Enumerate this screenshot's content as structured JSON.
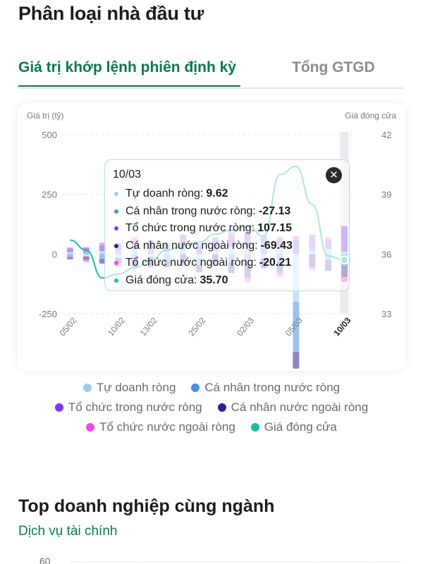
{
  "page": {
    "title": "Phân loại nhà đầu tư"
  },
  "tabs": [
    {
      "label": "Giá trị khớp lệnh phiên định kỳ",
      "active": true
    },
    {
      "label": "Tổng GTGD",
      "active": false
    }
  ],
  "colors": {
    "accent": "#0b7a4b",
    "tu_doanh": "#9ccbef",
    "ca_nhan_trong_nuoc": "#4a8fe0",
    "to_chuc_trong_nuoc": "#7c3aed",
    "ca_nhan_nuoc_ngoai": "#3b1c8c",
    "to_chuc_nuoc_ngoai": "#f14be1",
    "gia_dong_cua": "#1bbfa6"
  },
  "chart_data": {
    "type": "bar",
    "y_left_label": "Giá trị (tỷ)",
    "y_right_label": "Giá đóng cửa",
    "y_left_range": [
      -250,
      500
    ],
    "y_left_ticks": [
      "500",
      "250",
      "0",
      "-250"
    ],
    "y_right_range": [
      33,
      42
    ],
    "y_right_ticks": [
      "42",
      "39",
      "36",
      "33"
    ],
    "x_ticks": [
      "05/02",
      "10/02",
      "13/02",
      "25/02",
      "02/03",
      "05/03",
      "10/03"
    ],
    "series": [
      {
        "name": "Tự doanh ròng",
        "key": "tu_doanh",
        "values": [
          8,
          -10,
          12,
          -15,
          20,
          -12,
          10,
          15,
          -18,
          12,
          30,
          35,
          -20,
          25,
          -200,
          10,
          20,
          9.62
        ]
      },
      {
        "name": "Cá nhân trong nước ròng",
        "key": "ca_nhan_trong_nuoc",
        "values": [
          -12,
          8,
          -20,
          15,
          -25,
          18,
          -30,
          22,
          -28,
          18,
          -35,
          -40,
          30,
          -30,
          -210,
          15,
          -25,
          -27.13
        ]
      },
      {
        "name": "Tổ chức trong nước ròng",
        "key": "to_chuc_trong_nuoc",
        "values": [
          15,
          20,
          25,
          30,
          35,
          40,
          30,
          45,
          35,
          40,
          50,
          55,
          40,
          45,
          60,
          55,
          40,
          107.15
        ]
      },
      {
        "name": "Cá nhân nước ngoài ròng",
        "key": "ca_nhan_nuoc_ngoai",
        "values": [
          -10,
          -15,
          -20,
          -25,
          -30,
          -35,
          -25,
          -40,
          -30,
          -35,
          -45,
          -60,
          -40,
          -50,
          -70,
          -55,
          -45,
          -69.43
        ]
      },
      {
        "name": "Tổ chức nước ngoài ròng",
        "key": "to_chuc_nuoc_ngoai",
        "values": [
          5,
          -8,
          10,
          -12,
          15,
          -10,
          8,
          -12,
          10,
          -15,
          12,
          -18,
          10,
          -15,
          15,
          -12,
          10,
          -20.21
        ]
      },
      {
        "name": "Giá đóng cửa",
        "key": "gia_dong_cua",
        "type": "line",
        "values": [
          36.7,
          36.2,
          34.8,
          35.0,
          35.3,
          35.7,
          36.2,
          36.4,
          36.6,
          37.0,
          37.2,
          37.4,
          36.9,
          40.0,
          40.4,
          38.5,
          35.9,
          35.7
        ]
      }
    ],
    "highlight_index": 17
  },
  "tooltip": {
    "date": "10/03",
    "rows": [
      {
        "label": "Tự doanh ròng:",
        "value": "9.62",
        "color_key": "tu_doanh"
      },
      {
        "label": "Cá nhân trong nước ròng:",
        "value": "-27.13",
        "color_key": "ca_nhan_trong_nuoc"
      },
      {
        "label": "Tổ chức trong nước ròng:",
        "value": "107.15",
        "color_key": "to_chuc_trong_nuoc"
      },
      {
        "label": "Cá nhân nước ngoài ròng:",
        "value": "-69.43",
        "color_key": "ca_nhan_nuoc_ngoai"
      },
      {
        "label": "Tổ chức nước ngoài ròng:",
        "value": "-20.21",
        "color_key": "to_chuc_nuoc_ngoai"
      },
      {
        "label": "Giá đóng cửa:",
        "value": "35.70",
        "color_key": "gia_dong_cua"
      }
    ],
    "close_icon": "close-icon"
  },
  "legend": {
    "rows": [
      [
        {
          "label": "Tự doanh ròng",
          "color_key": "tu_doanh"
        },
        {
          "label": "Cá nhân trong nước ròng",
          "color_key": "ca_nhan_trong_nuoc"
        }
      ],
      [
        {
          "label": "Tổ chức trong nước ròng",
          "color_key": "to_chuc_trong_nuoc"
        },
        {
          "label": "Cá nhân nước ngoài ròng",
          "color_key": "ca_nhan_nuoc_ngoai"
        }
      ],
      [
        {
          "label": "Tổ chức nước ngoài ròng",
          "color_key": "to_chuc_nuoc_ngoai"
        },
        {
          "label": "Giá đóng cửa",
          "color_key": "gia_dong_cua"
        }
      ]
    ]
  },
  "section": {
    "title": "Top doanh nghiệp cùng ngành",
    "subtitle": "Dịch vụ tài chính",
    "axis_tick": "60"
  }
}
